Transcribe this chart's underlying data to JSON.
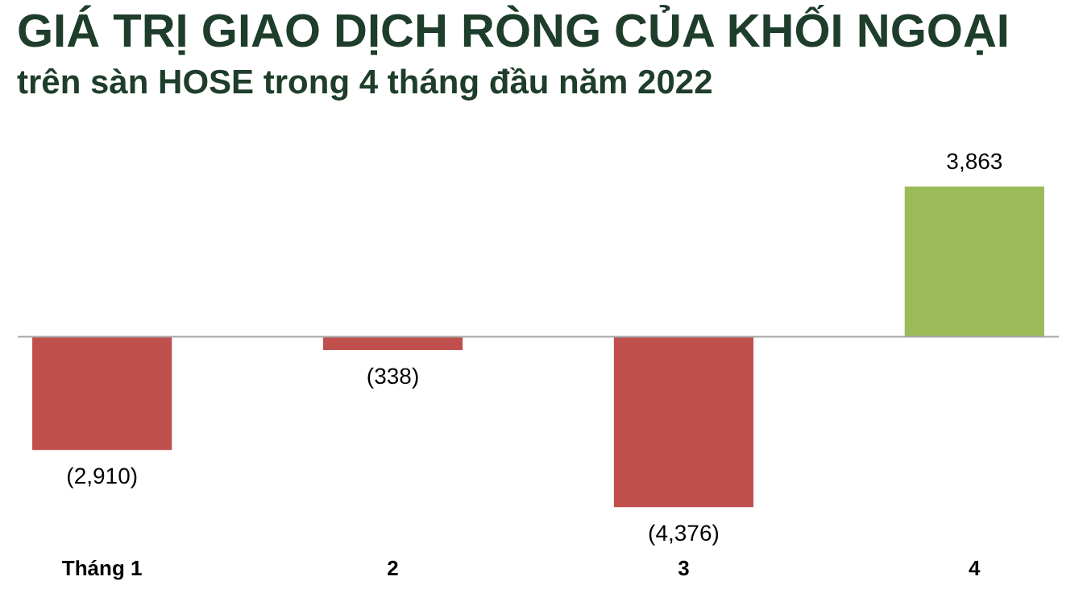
{
  "chart_data": {
    "type": "bar",
    "title": "GIÁ TRỊ GIAO DỊCH RÒNG CỦA KHỐI NGOẠI",
    "subtitle": "trên sàn HOSE trong 4 tháng đầu năm 2022",
    "categories": [
      "Tháng 1",
      "2",
      "3",
      "4"
    ],
    "values": [
      -2910,
      -338,
      -4376,
      3863
    ],
    "colors": [
      "#c0504d",
      "#c0504d",
      "#c0504d",
      "#9bbb59"
    ],
    "value_labels": [
      "(2,910)",
      "(338)",
      "(4,376)",
      "3,863"
    ],
    "grid": false
  }
}
